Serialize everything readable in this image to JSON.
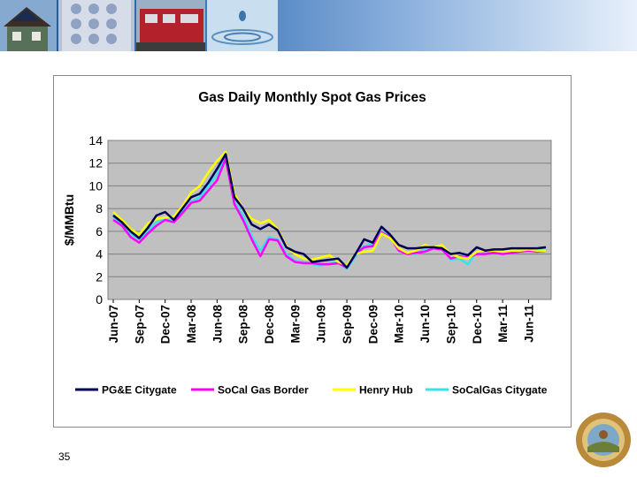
{
  "slide": {
    "number": "35"
  },
  "banner": {
    "photos": [
      "house-with-solar-panels",
      "phone-keypad",
      "train",
      "water-drop"
    ]
  },
  "chart_data": {
    "type": "line",
    "title": "Gas Daily Monthly Spot Gas Prices",
    "xlabel": "",
    "ylabel": "$/MMBtu",
    "ylim": [
      0,
      14
    ],
    "yticks": [
      0,
      2,
      4,
      6,
      8,
      10,
      12,
      14
    ],
    "grid": true,
    "legend_position": "bottom",
    "plot_background": "#c0c0c0",
    "x": [
      "Jun-07",
      "Jul-07",
      "Aug-07",
      "Sep-07",
      "Oct-07",
      "Nov-07",
      "Dec-07",
      "Jan-08",
      "Feb-08",
      "Mar-08",
      "Apr-08",
      "May-08",
      "Jun-08",
      "Jul-08",
      "Aug-08",
      "Sep-08",
      "Oct-08",
      "Nov-08",
      "Dec-08",
      "Jan-09",
      "Feb-09",
      "Mar-09",
      "Apr-09",
      "May-09",
      "Jun-09",
      "Jul-09",
      "Aug-09",
      "Sep-09",
      "Oct-09",
      "Nov-09",
      "Dec-09",
      "Jan-10",
      "Feb-10",
      "Mar-10",
      "Apr-10",
      "May-10",
      "Jun-10",
      "Jul-10",
      "Aug-10",
      "Sep-10",
      "Oct-10",
      "Nov-10",
      "Dec-10",
      "Jan-11",
      "Feb-11",
      "Mar-11",
      "Apr-11",
      "May-11",
      "Jun-11",
      "Jul-11",
      "Aug-11"
    ],
    "xtick_labels": [
      "Jun-07",
      "Sep-07",
      "Dec-07",
      "Mar-08",
      "Jun-08",
      "Sep-08",
      "Dec-08",
      "Mar-09",
      "Jun-09",
      "Sep-09",
      "Dec-09",
      "Mar-10",
      "Jun-10",
      "Sep-10",
      "Dec-10",
      "Mar-11",
      "Jun-11"
    ],
    "series": [
      {
        "name": "PG&E  Citygate",
        "color": "#00005a",
        "values": [
          7.4,
          6.8,
          6.0,
          5.4,
          6.3,
          7.4,
          7.7,
          7.0,
          8.0,
          9.0,
          9.3,
          10.3,
          11.5,
          12.8,
          9.0,
          8.0,
          6.6,
          6.2,
          6.6,
          6.1,
          4.6,
          4.2,
          4.0,
          3.3,
          3.4,
          3.5,
          3.6,
          2.8,
          4.0,
          5.3,
          5.0,
          6.4,
          5.7,
          4.8,
          4.5,
          4.5,
          4.6,
          4.6,
          4.5,
          4.0,
          4.1,
          3.9,
          4.6,
          4.3,
          4.4,
          4.4,
          4.5,
          4.5,
          4.5,
          4.5,
          4.6
        ]
      },
      {
        "name": "SoCal Gas  Border",
        "color": "#ff00ff",
        "values": [
          7.0,
          6.5,
          5.5,
          5.0,
          5.8,
          6.5,
          7.0,
          6.8,
          7.6,
          8.5,
          8.7,
          9.6,
          10.5,
          12.4,
          8.4,
          7.0,
          5.3,
          3.8,
          5.3,
          5.2,
          3.8,
          3.3,
          3.2,
          3.2,
          3.1,
          3.1,
          3.2,
          2.8,
          4.0,
          4.6,
          4.7,
          5.9,
          5.5,
          4.3,
          4.0,
          4.1,
          4.2,
          4.5,
          4.4,
          3.6,
          3.8,
          3.7,
          4.0,
          4.0,
          4.1,
          4.0,
          4.1,
          4.2,
          4.3,
          4.2,
          4.3
        ]
      },
      {
        "name": "Henry Hub",
        "color": "#ffff00",
        "values": [
          7.7,
          7.0,
          6.2,
          5.7,
          6.7,
          7.1,
          7.2,
          7.3,
          8.2,
          9.4,
          10.0,
          11.2,
          12.2,
          13.0,
          9.3,
          8.0,
          7.1,
          6.7,
          7.0,
          6.2,
          4.7,
          4.0,
          3.6,
          3.5,
          3.7,
          3.9,
          3.3,
          3.0,
          4.0,
          4.2,
          4.3,
          5.8,
          5.4,
          4.5,
          4.1,
          4.3,
          4.8,
          4.6,
          4.8,
          4.0,
          3.7,
          3.6,
          4.2,
          4.3,
          4.3,
          4.2,
          4.3,
          4.3,
          4.4,
          4.3,
          4.3
        ]
      },
      {
        "name": "SoCalGas Citygate",
        "color": "#33e6e6",
        "values": [
          7.2,
          6.7,
          5.8,
          5.3,
          6.0,
          6.8,
          7.1,
          6.9,
          7.7,
          8.6,
          9.0,
          10.0,
          11.0,
          12.6,
          8.6,
          7.4,
          5.6,
          4.3,
          5.5,
          5.3,
          4.0,
          3.4,
          3.3,
          3.1,
          3.0,
          3.2,
          3.3,
          2.7,
          3.8,
          4.7,
          4.9,
          6.0,
          5.6,
          4.4,
          4.1,
          4.0,
          4.4,
          4.6,
          4.5,
          3.5,
          3.6,
          3.1,
          4.2,
          4.1,
          4.2,
          4.0,
          4.2,
          4.3,
          4.4,
          4.4,
          4.5
        ]
      }
    ]
  }
}
